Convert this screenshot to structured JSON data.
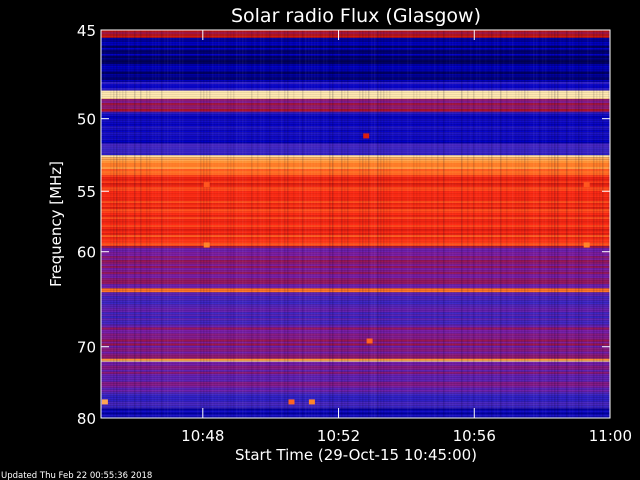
{
  "chart_data": {
    "type": "heatmap",
    "title": "Solar radio Flux (Glasgow)",
    "xlabel": "Start Time (29-Oct-15 10:45:00)",
    "ylabel": "Frequency [MHz]",
    "x_ticks": [
      "10:48",
      "10:52",
      "10:56",
      "11:00"
    ],
    "x_tick_minutes": [
      3,
      7,
      11,
      15
    ],
    "xlim_minutes": [
      0,
      15
    ],
    "y_ticks": [
      45,
      50,
      55,
      60,
      70,
      80
    ],
    "ylim": [
      80,
      45
    ],
    "y_scale": "reciprocal",
    "colormap": [
      "#000050",
      "#0000c8",
      "#3c28c8",
      "#7a1ea8",
      "#b4100a",
      "#ff2a14",
      "#ff8a2a",
      "#ffe8b0"
    ],
    "bands": [
      {
        "f0": 45.0,
        "f1": 45.4,
        "level": 0.55
      },
      {
        "f0": 45.4,
        "f1": 47.8,
        "level": 0.08
      },
      {
        "f0": 47.8,
        "f1": 48.3,
        "level": 0.22
      },
      {
        "f0": 48.3,
        "f1": 48.8,
        "level": 0.97
      },
      {
        "f0": 48.8,
        "f1": 49.6,
        "level": 0.5
      },
      {
        "f0": 49.6,
        "f1": 51.6,
        "level": 0.18
      },
      {
        "f0": 51.6,
        "f1": 52.4,
        "level": 0.3
      },
      {
        "f0": 52.4,
        "f1": 52.8,
        "level": 0.95
      },
      {
        "f0": 52.8,
        "f1": 53.8,
        "level": 0.82
      },
      {
        "f0": 53.8,
        "f1": 59.5,
        "level": 0.72
      },
      {
        "f0": 59.5,
        "f1": 63.5,
        "level": 0.44
      },
      {
        "f0": 63.5,
        "f1": 63.9,
        "level": 0.88
      },
      {
        "f0": 63.9,
        "f1": 67.5,
        "level": 0.33
      },
      {
        "f0": 67.5,
        "f1": 71.5,
        "level": 0.45
      },
      {
        "f0": 71.5,
        "f1": 71.9,
        "level": 0.93
      },
      {
        "f0": 71.9,
        "f1": 76.0,
        "level": 0.42
      },
      {
        "f0": 76.0,
        "f1": 78.5,
        "level": 0.3
      },
      {
        "f0": 78.5,
        "f1": 80.0,
        "level": 0.14
      }
    ],
    "spots": [
      {
        "t": 3.1,
        "f": 59.4,
        "level": 0.85
      },
      {
        "t": 3.1,
        "f": 54.5,
        "level": 0.78
      },
      {
        "t": 14.3,
        "f": 59.4,
        "level": 0.85
      },
      {
        "t": 14.3,
        "f": 54.5,
        "level": 0.78
      },
      {
        "t": 7.9,
        "f": 69.3,
        "level": 0.8
      },
      {
        "t": 7.8,
        "f": 51.1,
        "level": 0.65
      },
      {
        "t": 6.2,
        "f": 77.5,
        "level": 0.85
      },
      {
        "t": 5.6,
        "f": 77.5,
        "level": 0.8
      },
      {
        "t": 0.1,
        "f": 77.5,
        "level": 0.9
      }
    ]
  },
  "footer": {
    "updated": "Updated Thu Feb 22 00:55:36 2018"
  }
}
